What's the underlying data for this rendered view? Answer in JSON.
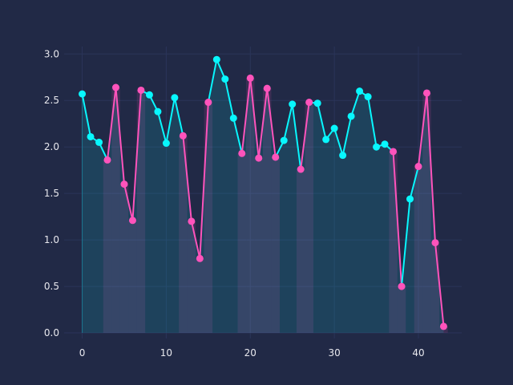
{
  "chart_data": {
    "type": "line",
    "title": "",
    "xlabel": "",
    "ylabel": "",
    "xlim": [
      -2.15,
      45.15
    ],
    "ylim": [
      -0.06,
      3.08
    ],
    "x_ticks": [
      0,
      10,
      20,
      30,
      40
    ],
    "y_ticks": [
      0.0,
      0.5,
      1.0,
      1.5,
      2.0,
      2.5,
      3.0
    ],
    "x_tick_labels": [
      "0",
      "10",
      "20",
      "30",
      "40"
    ],
    "y_tick_labels": [
      "0.0",
      "0.5",
      "1.0",
      "1.5",
      "2.0",
      "2.5",
      "3.0"
    ],
    "grid": true,
    "x": [
      0,
      1,
      2,
      3,
      4,
      5,
      6,
      7,
      8,
      9,
      10,
      11,
      12,
      13,
      14,
      15,
      16,
      17,
      18,
      19,
      20,
      21,
      22,
      23,
      24,
      25,
      26,
      27,
      28,
      29,
      30,
      31,
      32,
      33,
      34,
      35,
      36,
      37,
      38,
      39,
      40,
      41,
      42,
      43
    ],
    "values": [
      2.57,
      2.11,
      2.05,
      1.86,
      2.64,
      1.6,
      1.21,
      2.61,
      2.56,
      2.38,
      2.04,
      2.53,
      2.12,
      1.2,
      0.8,
      2.48,
      2.94,
      2.73,
      2.31,
      1.93,
      2.74,
      1.88,
      2.63,
      1.89,
      2.07,
      2.46,
      1.76,
      2.48,
      2.47,
      2.08,
      2.2,
      1.91,
      2.33,
      2.6,
      2.54,
      2.0,
      2.03,
      1.95,
      0.5,
      1.44,
      1.79,
      2.58,
      0.97,
      0.07
    ],
    "highlight_indices": [
      3,
      4,
      5,
      6,
      7,
      12,
      13,
      14,
      15,
      19,
      20,
      21,
      22,
      23,
      26,
      27,
      37,
      38,
      40,
      41,
      42,
      43
    ]
  },
  "colors": {
    "background": "#212946",
    "grid": "#2A3459",
    "tick_text": "#E8E8EE",
    "line": "#08F7FE",
    "highlight": "#FE53BB",
    "fill": "#08F7FE",
    "highlight_band": "#FE53BB"
  }
}
